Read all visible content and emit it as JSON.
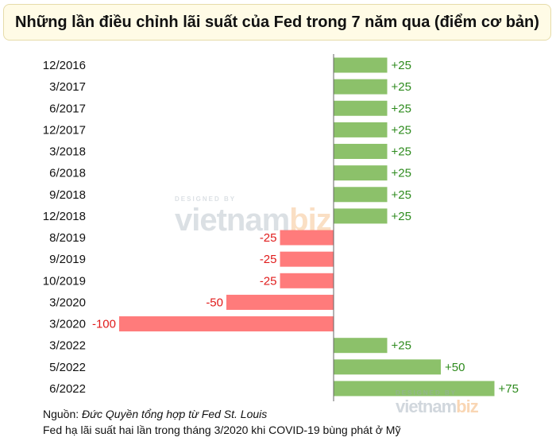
{
  "title": "Những lần điều chỉnh lãi suất của Fed trong 7 năm qua (điểm cơ bản)",
  "chart_data": {
    "type": "bar",
    "orientation": "horizontal",
    "categories": [
      "12/2016",
      "3/2017",
      "6/2017",
      "12/2017",
      "3/2018",
      "6/2018",
      "9/2018",
      "12/2018",
      "8/2019",
      "9/2019",
      "10/2019",
      "3/2020",
      "3/2020",
      "3/2022",
      "5/2022",
      "6/2022"
    ],
    "values": [
      25,
      25,
      25,
      25,
      25,
      25,
      25,
      25,
      -25,
      -25,
      -25,
      -50,
      -100,
      25,
      50,
      75
    ],
    "data_labels": [
      "+25",
      "+25",
      "+25",
      "+25",
      "+25",
      "+25",
      "+25",
      "+25",
      "-25",
      "-25",
      "-25",
      "-50",
      "-100",
      "+25",
      "+50",
      "+75"
    ],
    "xlim": [
      -100,
      75
    ],
    "positive_color": "#8cc16a",
    "negative_color": "#ff7b7b",
    "positive_label_color": "#2e8b1e",
    "negative_label_color": "#e01b1b"
  },
  "watermark": {
    "small": "DESIGNED BY",
    "main": "vietnam",
    "accent": "biz"
  },
  "footer": {
    "source_label": "Nguồn:",
    "source_detail": "Đức Quyền tổng hợp từ Fed St. Louis",
    "note": "Fed hạ lãi suất hai lần trong tháng 3/2020 khi COVID-19 bùng phát ở Mỹ"
  }
}
